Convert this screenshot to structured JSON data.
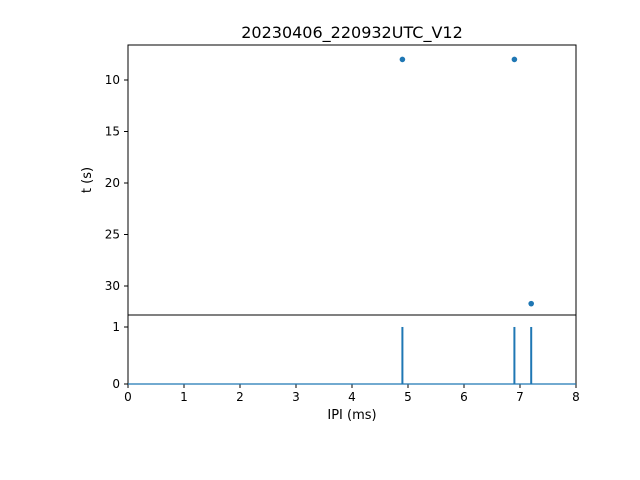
{
  "chart_data": [
    {
      "type": "scatter",
      "title": "20230406_220932UTC_V12",
      "xlabel": "",
      "ylabel": "t (s)",
      "xlim": [
        0,
        8
      ],
      "ylim": [
        6.6,
        32.8
      ],
      "y_inverted": true,
      "yticks": [
        10,
        15,
        20,
        25,
        30
      ],
      "grid": false,
      "marker_color": "#1f77b4",
      "points": [
        {
          "x": 4.9,
          "y": 8.0
        },
        {
          "x": 6.9,
          "y": 8.0
        },
        {
          "x": 7.2,
          "y": 31.7
        }
      ]
    },
    {
      "type": "bar",
      "title": "",
      "xlabel": "IPI (ms)",
      "ylabel": "",
      "xlim": [
        0,
        8
      ],
      "ylim": [
        0,
        1.21
      ],
      "yticks": [
        0,
        1
      ],
      "xticks": [
        0,
        1,
        2,
        3,
        4,
        5,
        6,
        7,
        8
      ],
      "grid": false,
      "bar_color": "#1f77b4",
      "baseline": 0,
      "stems": [
        {
          "x": 4.9,
          "height": 1
        },
        {
          "x": 6.9,
          "height": 1
        },
        {
          "x": 7.2,
          "height": 1
        }
      ]
    }
  ]
}
